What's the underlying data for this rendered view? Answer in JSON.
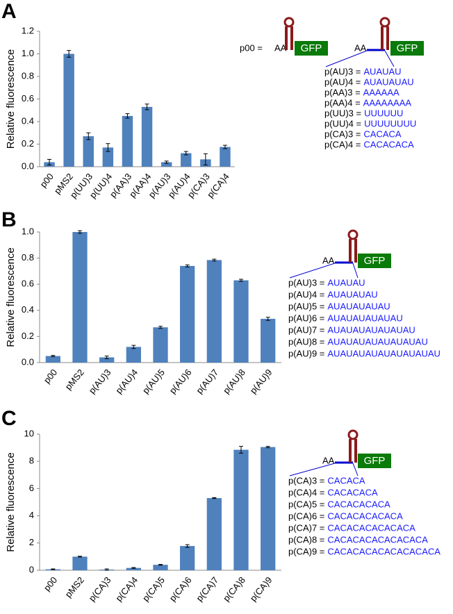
{
  "chart_data": [
    {
      "type": "bar",
      "panel": "A",
      "ylabel": "Relative fluorescence",
      "color": "#4f81bd",
      "categories": [
        "p00",
        "pMS2",
        "p(UU)3",
        "p(UU)4",
        "p(AA)3",
        "p(AA)4",
        "p(AU)3",
        "p(AU)4",
        "p(CA)3",
        "p(CA)4"
      ],
      "values": [
        0.04,
        1.0,
        0.27,
        0.17,
        0.45,
        0.53,
        0.04,
        0.12,
        0.065,
        0.175
      ],
      "errors": [
        0.025,
        0.03,
        0.03,
        0.035,
        0.02,
        0.025,
        0.01,
        0.015,
        0.05,
        0.015
      ],
      "ylim": [
        0,
        1.2
      ],
      "yticks": [
        {
          "value": 0,
          "label": "0.0"
        },
        0.2,
        0.4,
        0.6,
        0.8,
        {
          "value": 1,
          "label": "1.0"
        },
        1.2
      ],
      "schematics": [
        {
          "prefix": "p00 =",
          "five_prime": "AA",
          "reporter": "GFP"
        },
        {
          "five_prime": "AA",
          "reporter": "GFP"
        }
      ],
      "constructs": [
        {
          "name": "p(AU)3 =",
          "sequence": "AUAUAU"
        },
        {
          "name": "p(AU)4 =",
          "sequence": "AUAUAUAU"
        },
        {
          "name": "p(AA)3 =",
          "sequence": "AAAAAA"
        },
        {
          "name": "p(AA)4 =",
          "sequence": "AAAAAAAA"
        },
        {
          "name": "p(UU)3 =",
          "sequence": "UUUUUU"
        },
        {
          "name": "p(UU)4 =",
          "sequence": "UUUUUUUU"
        },
        {
          "name": "p(CA)3 =",
          "sequence": "CACACA"
        },
        {
          "name": "p(CA)4 =",
          "sequence": "CACACACA"
        }
      ]
    },
    {
      "type": "bar",
      "panel": "B",
      "ylabel": "Relative fluorescence",
      "color": "#4f81bd",
      "categories": [
        "p00",
        "pMS2",
        "p(AU)3",
        "p(AU)4",
        "p(AU)5",
        "p(AU)6",
        "p(AU)7",
        "p(AU)8",
        "p(AU)9"
      ],
      "values": [
        0.05,
        1.0,
        0.04,
        0.12,
        0.27,
        0.74,
        0.785,
        0.63,
        0.335
      ],
      "errors": [
        0.005,
        0.01,
        0.01,
        0.012,
        0.008,
        0.008,
        0.007,
        0.008,
        0.012
      ],
      "ylim": [
        0,
        1.0
      ],
      "yticks": [
        {
          "value": 0,
          "label": "0.0"
        },
        0.2,
        0.4,
        0.6,
        0.8,
        {
          "value": 1,
          "label": "1.0"
        }
      ],
      "schematics": [
        {
          "five_prime": "AA",
          "reporter": "GFP"
        }
      ],
      "constructs": [
        {
          "name": "p(AU)3 =",
          "sequence": "AUAUAU"
        },
        {
          "name": "p(AU)4 =",
          "sequence": "AUAUAUAU"
        },
        {
          "name": "p(AU)5 =",
          "sequence": "AUAUAUAUAU"
        },
        {
          "name": "p(AU)6 =",
          "sequence": "AUAUAUAUAUAU"
        },
        {
          "name": "p(AU)7 =",
          "sequence": "AUAUAUAUAUAUAU"
        },
        {
          "name": "p(AU)8 =",
          "sequence": "AUAUAUAUAUAUAUAU"
        },
        {
          "name": "p(AU)9 =",
          "sequence": "AUAUAUAUAUAUAUAUAU"
        }
      ]
    },
    {
      "type": "bar",
      "panel": "C",
      "ylabel": "Relative fluorescence",
      "color": "#4f81bd",
      "categories": [
        "p00",
        "pMS2",
        "p(CA)3",
        "p(CA)4",
        "p(CA)5",
        "p(CA)6",
        "p(CA)7",
        "p(CA)8",
        "p(CA)9"
      ],
      "values": [
        0.07,
        1.0,
        0.05,
        0.17,
        0.4,
        1.78,
        5.3,
        8.85,
        9.05
      ],
      "errors": [
        0.03,
        0.03,
        0.05,
        0.03,
        0.03,
        0.1,
        0.03,
        0.25,
        0.05
      ],
      "ylim": [
        0,
        10
      ],
      "yticks": [
        0,
        2,
        4,
        6,
        8,
        10
      ],
      "schematics": [
        {
          "five_prime": "AA",
          "reporter": "GFP"
        }
      ],
      "constructs": [
        {
          "name": "p(CA)3 =",
          "sequence": "CACACA"
        },
        {
          "name": "p(CA)4 =",
          "sequence": "CACACACA"
        },
        {
          "name": "p(CA)5 =",
          "sequence": "CACACACACA"
        },
        {
          "name": "p(CA)6 =",
          "sequence": "CACACACACACA"
        },
        {
          "name": "p(CA)7 =",
          "sequence": "CACACACACACACA"
        },
        {
          "name": "p(CA)8 =",
          "sequence": "CACACACACACACACA"
        },
        {
          "name": "p(CA)9 =",
          "sequence": "CACACACACACACACACA"
        }
      ]
    }
  ]
}
